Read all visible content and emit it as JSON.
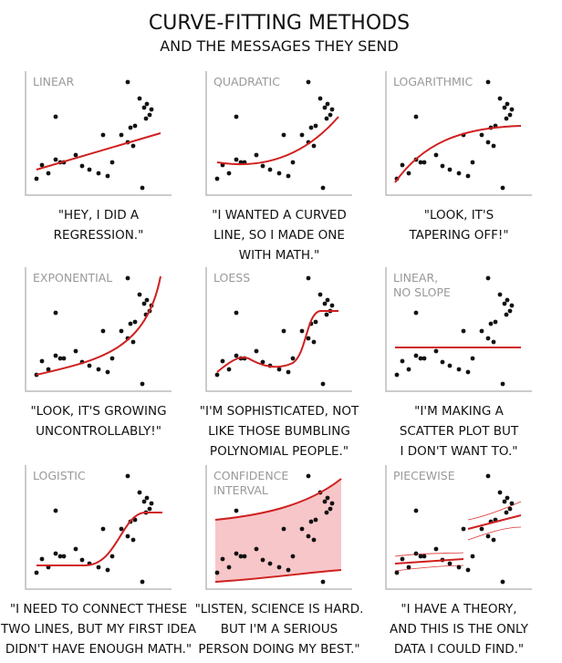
{
  "header": {
    "title": "CURVE-FITTING METHODS",
    "subtitle": "AND THE MESSAGES THEY SEND"
  },
  "panels": [
    {
      "label": [
        "LINEAR"
      ],
      "caption": [
        "\"HEY, I DID A",
        "REGRESSION.\""
      ]
    },
    {
      "label": [
        "QUADRATIC"
      ],
      "caption": [
        "\"I WANTED A CURVED",
        "LINE, SO I MADE ONE",
        "WITH MATH.\""
      ]
    },
    {
      "label": [
        "LOGARITHMIC"
      ],
      "caption": [
        "\"LOOK, IT'S",
        "TAPERING OFF!\""
      ]
    },
    {
      "label": [
        "EXPONENTIAL"
      ],
      "caption": [
        "\"LOOK, IT'S GROWING",
        "UNCONTROLLABLY!\""
      ]
    },
    {
      "label": [
        "LOESS"
      ],
      "caption": [
        "\"I'M SOPHISTICATED, NOT",
        "LIKE THOSE BUMBLING",
        "POLYNOMIAL PEOPLE.\""
      ]
    },
    {
      "label": [
        "LINEAR,",
        "NO SLOPE"
      ],
      "caption": [
        "\"I'M MAKING A",
        "SCATTER PLOT BUT",
        "I DON'T WANT TO.\""
      ]
    },
    {
      "label": [
        "LOGISTIC"
      ],
      "caption": [
        "\"I NEED TO CONNECT THESE",
        "TWO LINES, BUT MY FIRST IDEA",
        "DIDN'T HAVE ENOUGH MATH.\""
      ]
    },
    {
      "label": [
        "CONFIDENCE",
        "INTERVAL"
      ],
      "caption": [
        "\"LISTEN, SCIENCE IS HARD.",
        "BUT I'M A SERIOUS",
        "PERSON DOING MY BEST.\""
      ]
    },
    {
      "label": [
        "PIECEWISE"
      ],
      "caption": [
        "\"I HAVE A THEORY,",
        "AND THIS IS THE ONLY",
        "DATA I COULD FIND.\""
      ]
    }
  ]
}
